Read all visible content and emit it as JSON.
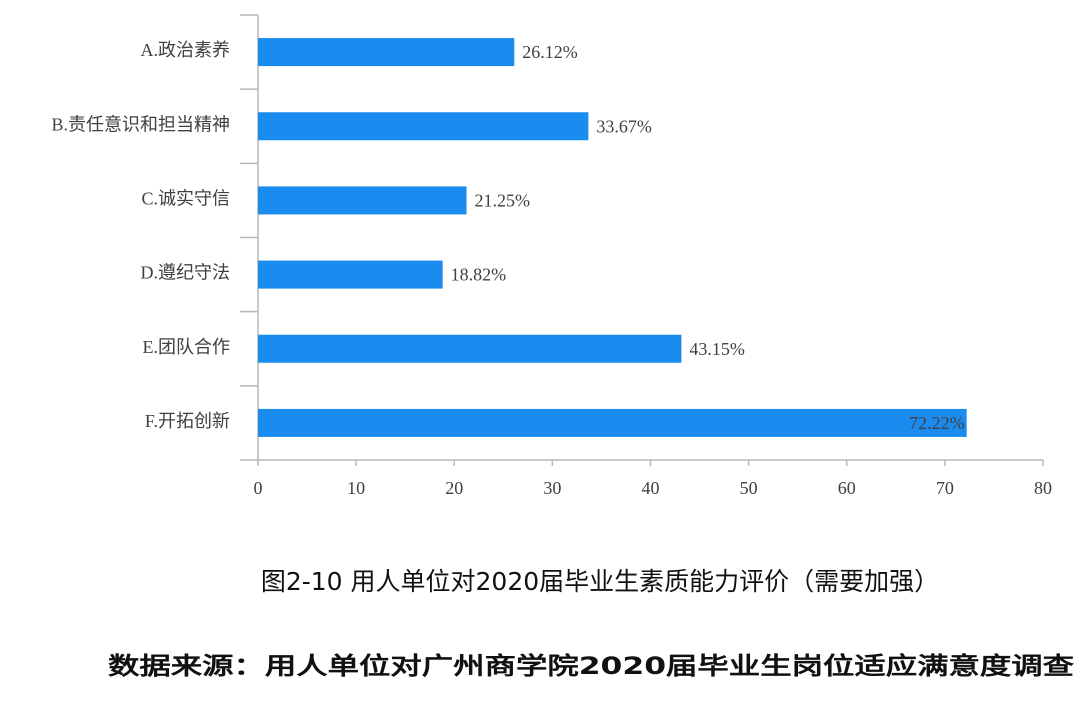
{
  "chart_data": {
    "type": "bar",
    "orientation": "horizontal",
    "categories": [
      "A.政治素养",
      "B.责任意识和担当精神",
      "C.诚实守信",
      "D.遵纪守法",
      "E.团队合作",
      "F.开拓创新"
    ],
    "values": [
      26.12,
      33.67,
      21.25,
      18.82,
      43.15,
      72.22
    ],
    "value_labels": [
      "26.12%",
      "33.67%",
      "21.25%",
      "18.82%",
      "43.15%",
      "72.22%"
    ],
    "color": "#1a8cf0",
    "xlim": [
      0,
      80
    ],
    "xticks": [
      0,
      10,
      20,
      30,
      40,
      50,
      60,
      70,
      80
    ],
    "caption": "图2-10  用人单位对2020届毕业生素质能力评价（需要加强）",
    "source": "数据来源：用人单位对广州商学院2020届毕业生岗位适应满意度调查"
  }
}
